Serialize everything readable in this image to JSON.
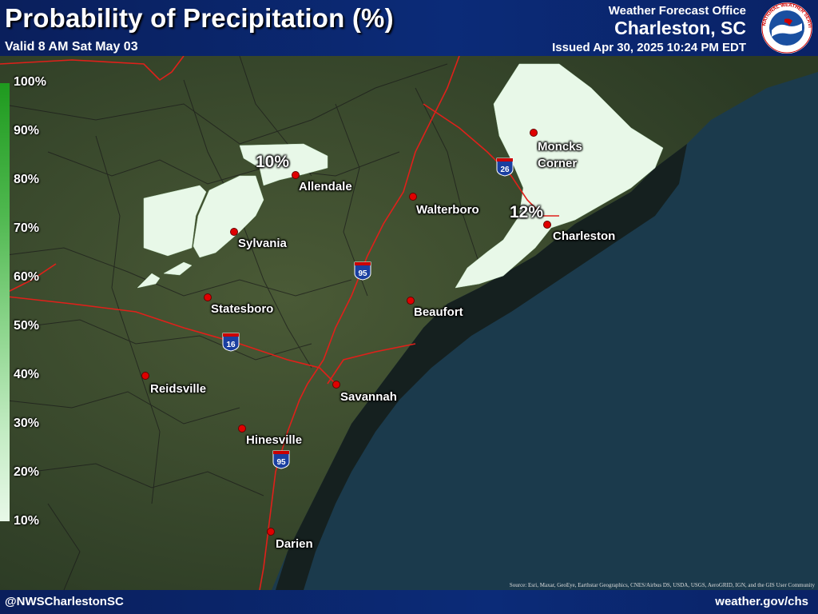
{
  "header": {
    "title": "Probability of Precipitation (%)",
    "valid": "Valid 8 AM Sat May 03",
    "office_label": "Weather Forecast Office",
    "office_name": "Charleston, SC",
    "issued": "Issued Apr 30, 2025 10:24 PM EDT",
    "logo_text": "NATIONAL WEATHER SERVICE"
  },
  "legend": {
    "labels": [
      "100%",
      "90%",
      "80%",
      "70%",
      "60%",
      "50%",
      "40%",
      "30%",
      "20%",
      "10%"
    ],
    "colors": {
      "high": "#1e9a1e",
      "mid": "#8ad48a",
      "low": "#e8f8e8"
    }
  },
  "cities": [
    {
      "name": "Allendale"
    },
    {
      "name": "Sylvania"
    },
    {
      "name": "Walterboro"
    },
    {
      "name": "Moncks Corner"
    },
    {
      "name": "Charleston"
    },
    {
      "name": "Statesboro"
    },
    {
      "name": "Beaufort"
    },
    {
      "name": "Reidsville"
    },
    {
      "name": "Savannah"
    },
    {
      "name": "Hinesville"
    },
    {
      "name": "Darien"
    }
  ],
  "pop_labels": [
    "10%",
    "12%"
  ],
  "interstates": [
    "26",
    "95",
    "16",
    "95"
  ],
  "colors": {
    "pop_fill": "#e8f8e8",
    "roads": "#e0201a",
    "header_bg": "#0b2b78",
    "land": "#3a4a2c",
    "ocean": "#1b3a4c"
  },
  "source": "Source: Esri, Maxar, GeoEye, Earthstar Geographics, CNES/Airbus DS, USDA, USGS, AeroGRID, IGN, and the GIS User Community",
  "footer": {
    "handle": "@NWSCharlestonSC",
    "site": "weather.gov/chs"
  }
}
